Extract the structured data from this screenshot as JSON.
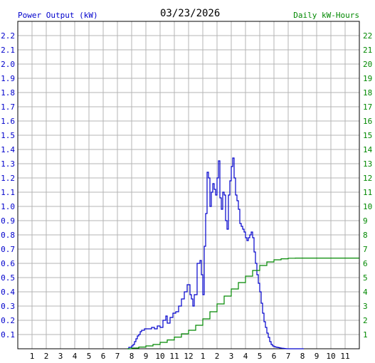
{
  "chart_data": {
    "type": "line",
    "title": "03/23/2026",
    "left_axis_label": "Power Output (kW)",
    "right_axis_label": "Daily kW-Hours",
    "x_tick_labels": [
      "1",
      "2",
      "3",
      "4",
      "5",
      "6",
      "7",
      "8",
      "9",
      "10",
      "11",
      "12",
      "1",
      "2",
      "3",
      "4",
      "5",
      "6",
      "7",
      "8",
      "9",
      "10",
      "11"
    ],
    "xlim": [
      0,
      24
    ],
    "y_left_ticks": [
      "0.1",
      "0.2",
      "0.3",
      "0.4",
      "0.5",
      "0.6",
      "0.7",
      "0.8",
      "0.9",
      "1.0",
      "1.1",
      "1.2",
      "1.3",
      "1.4",
      "1.5",
      "1.6",
      "1.7",
      "1.8",
      "1.9",
      "2.0",
      "2.1",
      "2.2"
    ],
    "y_left_lim": [
      0,
      2.3
    ],
    "y_right_ticks": [
      "1",
      "2",
      "3",
      "4",
      "5",
      "6",
      "7",
      "8",
      "9",
      "10",
      "11",
      "12",
      "13",
      "14",
      "15",
      "16",
      "17",
      "18",
      "19",
      "20",
      "21",
      "22"
    ],
    "y_right_lim": [
      0,
      23
    ],
    "grid": true,
    "series": [
      {
        "name": "Power Output (kW)",
        "axis": "left",
        "color": "#0000cc",
        "x": [
          7.7,
          7.8,
          8.0,
          8.1,
          8.2,
          8.3,
          8.4,
          8.5,
          8.6,
          8.7,
          8.8,
          8.9,
          9.0,
          9.2,
          9.4,
          9.6,
          9.8,
          10.0,
          10.2,
          10.4,
          10.5,
          10.7,
          10.9,
          11.1,
          11.3,
          11.5,
          11.7,
          11.9,
          12.0,
          12.1,
          12.2,
          12.3,
          12.4,
          12.6,
          12.8,
          12.9,
          13.0,
          13.1,
          13.2,
          13.3,
          13.4,
          13.5,
          13.6,
          13.7,
          13.8,
          13.9,
          14.0,
          14.1,
          14.2,
          14.3,
          14.4,
          14.5,
          14.6,
          14.7,
          14.8,
          14.9,
          15.0,
          15.1,
          15.2,
          15.3,
          15.4,
          15.5,
          15.6,
          15.7,
          15.8,
          15.9,
          16.0,
          16.1,
          16.2,
          16.3,
          16.4,
          16.5,
          16.6,
          16.7,
          16.8,
          16.9,
          17.0,
          17.1,
          17.2,
          17.3,
          17.4,
          17.5,
          17.6,
          17.7,
          17.8,
          17.9,
          18.0,
          18.1,
          18.2,
          18.3,
          18.4,
          18.5,
          18.6,
          18.7,
          18.8,
          18.9,
          19.0,
          19.2,
          19.4,
          19.6,
          19.8,
          20.0,
          20.1
        ],
        "y": [
          0.0,
          0.01,
          0.02,
          0.03,
          0.05,
          0.07,
          0.09,
          0.1,
          0.12,
          0.13,
          0.13,
          0.14,
          0.14,
          0.14,
          0.15,
          0.14,
          0.16,
          0.15,
          0.2,
          0.23,
          0.18,
          0.22,
          0.25,
          0.26,
          0.3,
          0.35,
          0.4,
          0.45,
          0.45,
          0.38,
          0.35,
          0.3,
          0.38,
          0.6,
          0.62,
          0.52,
          0.38,
          0.72,
          0.95,
          1.24,
          1.2,
          1.0,
          1.1,
          1.16,
          1.12,
          1.08,
          1.2,
          1.32,
          1.06,
          0.98,
          1.1,
          1.08,
          0.9,
          0.84,
          1.08,
          1.18,
          1.28,
          1.34,
          1.2,
          1.08,
          1.04,
          0.98,
          0.88,
          0.86,
          0.84,
          0.82,
          0.78,
          0.76,
          0.78,
          0.8,
          0.82,
          0.78,
          0.68,
          0.6,
          0.52,
          0.46,
          0.4,
          0.32,
          0.25,
          0.19,
          0.15,
          0.11,
          0.08,
          0.05,
          0.03,
          0.02,
          0.015,
          0.012,
          0.01,
          0.008,
          0.006,
          0.004,
          0.003,
          0.002,
          0.001,
          0.0,
          0.0,
          0.0,
          0.0,
          0.0,
          0.0,
          0.0,
          0.0
        ]
      },
      {
        "name": "Daily kW-Hours",
        "axis": "right",
        "color": "#008800",
        "x": [
          7.7,
          8.0,
          8.5,
          9.0,
          9.5,
          10.0,
          10.5,
          11.0,
          11.5,
          12.0,
          12.5,
          13.0,
          13.5,
          14.0,
          14.5,
          15.0,
          15.5,
          16.0,
          16.5,
          17.0,
          17.5,
          18.0,
          18.5,
          19.0,
          19.5,
          20.0,
          21.0,
          22.0,
          23.0,
          24.0
        ],
        "y": [
          0.0,
          0.05,
          0.12,
          0.2,
          0.3,
          0.45,
          0.62,
          0.82,
          1.05,
          1.3,
          1.65,
          2.1,
          2.6,
          3.15,
          3.7,
          4.2,
          4.65,
          5.1,
          5.5,
          5.85,
          6.1,
          6.25,
          6.32,
          6.36,
          6.37,
          6.37,
          6.37,
          6.37,
          6.37,
          6.37
        ]
      }
    ]
  }
}
